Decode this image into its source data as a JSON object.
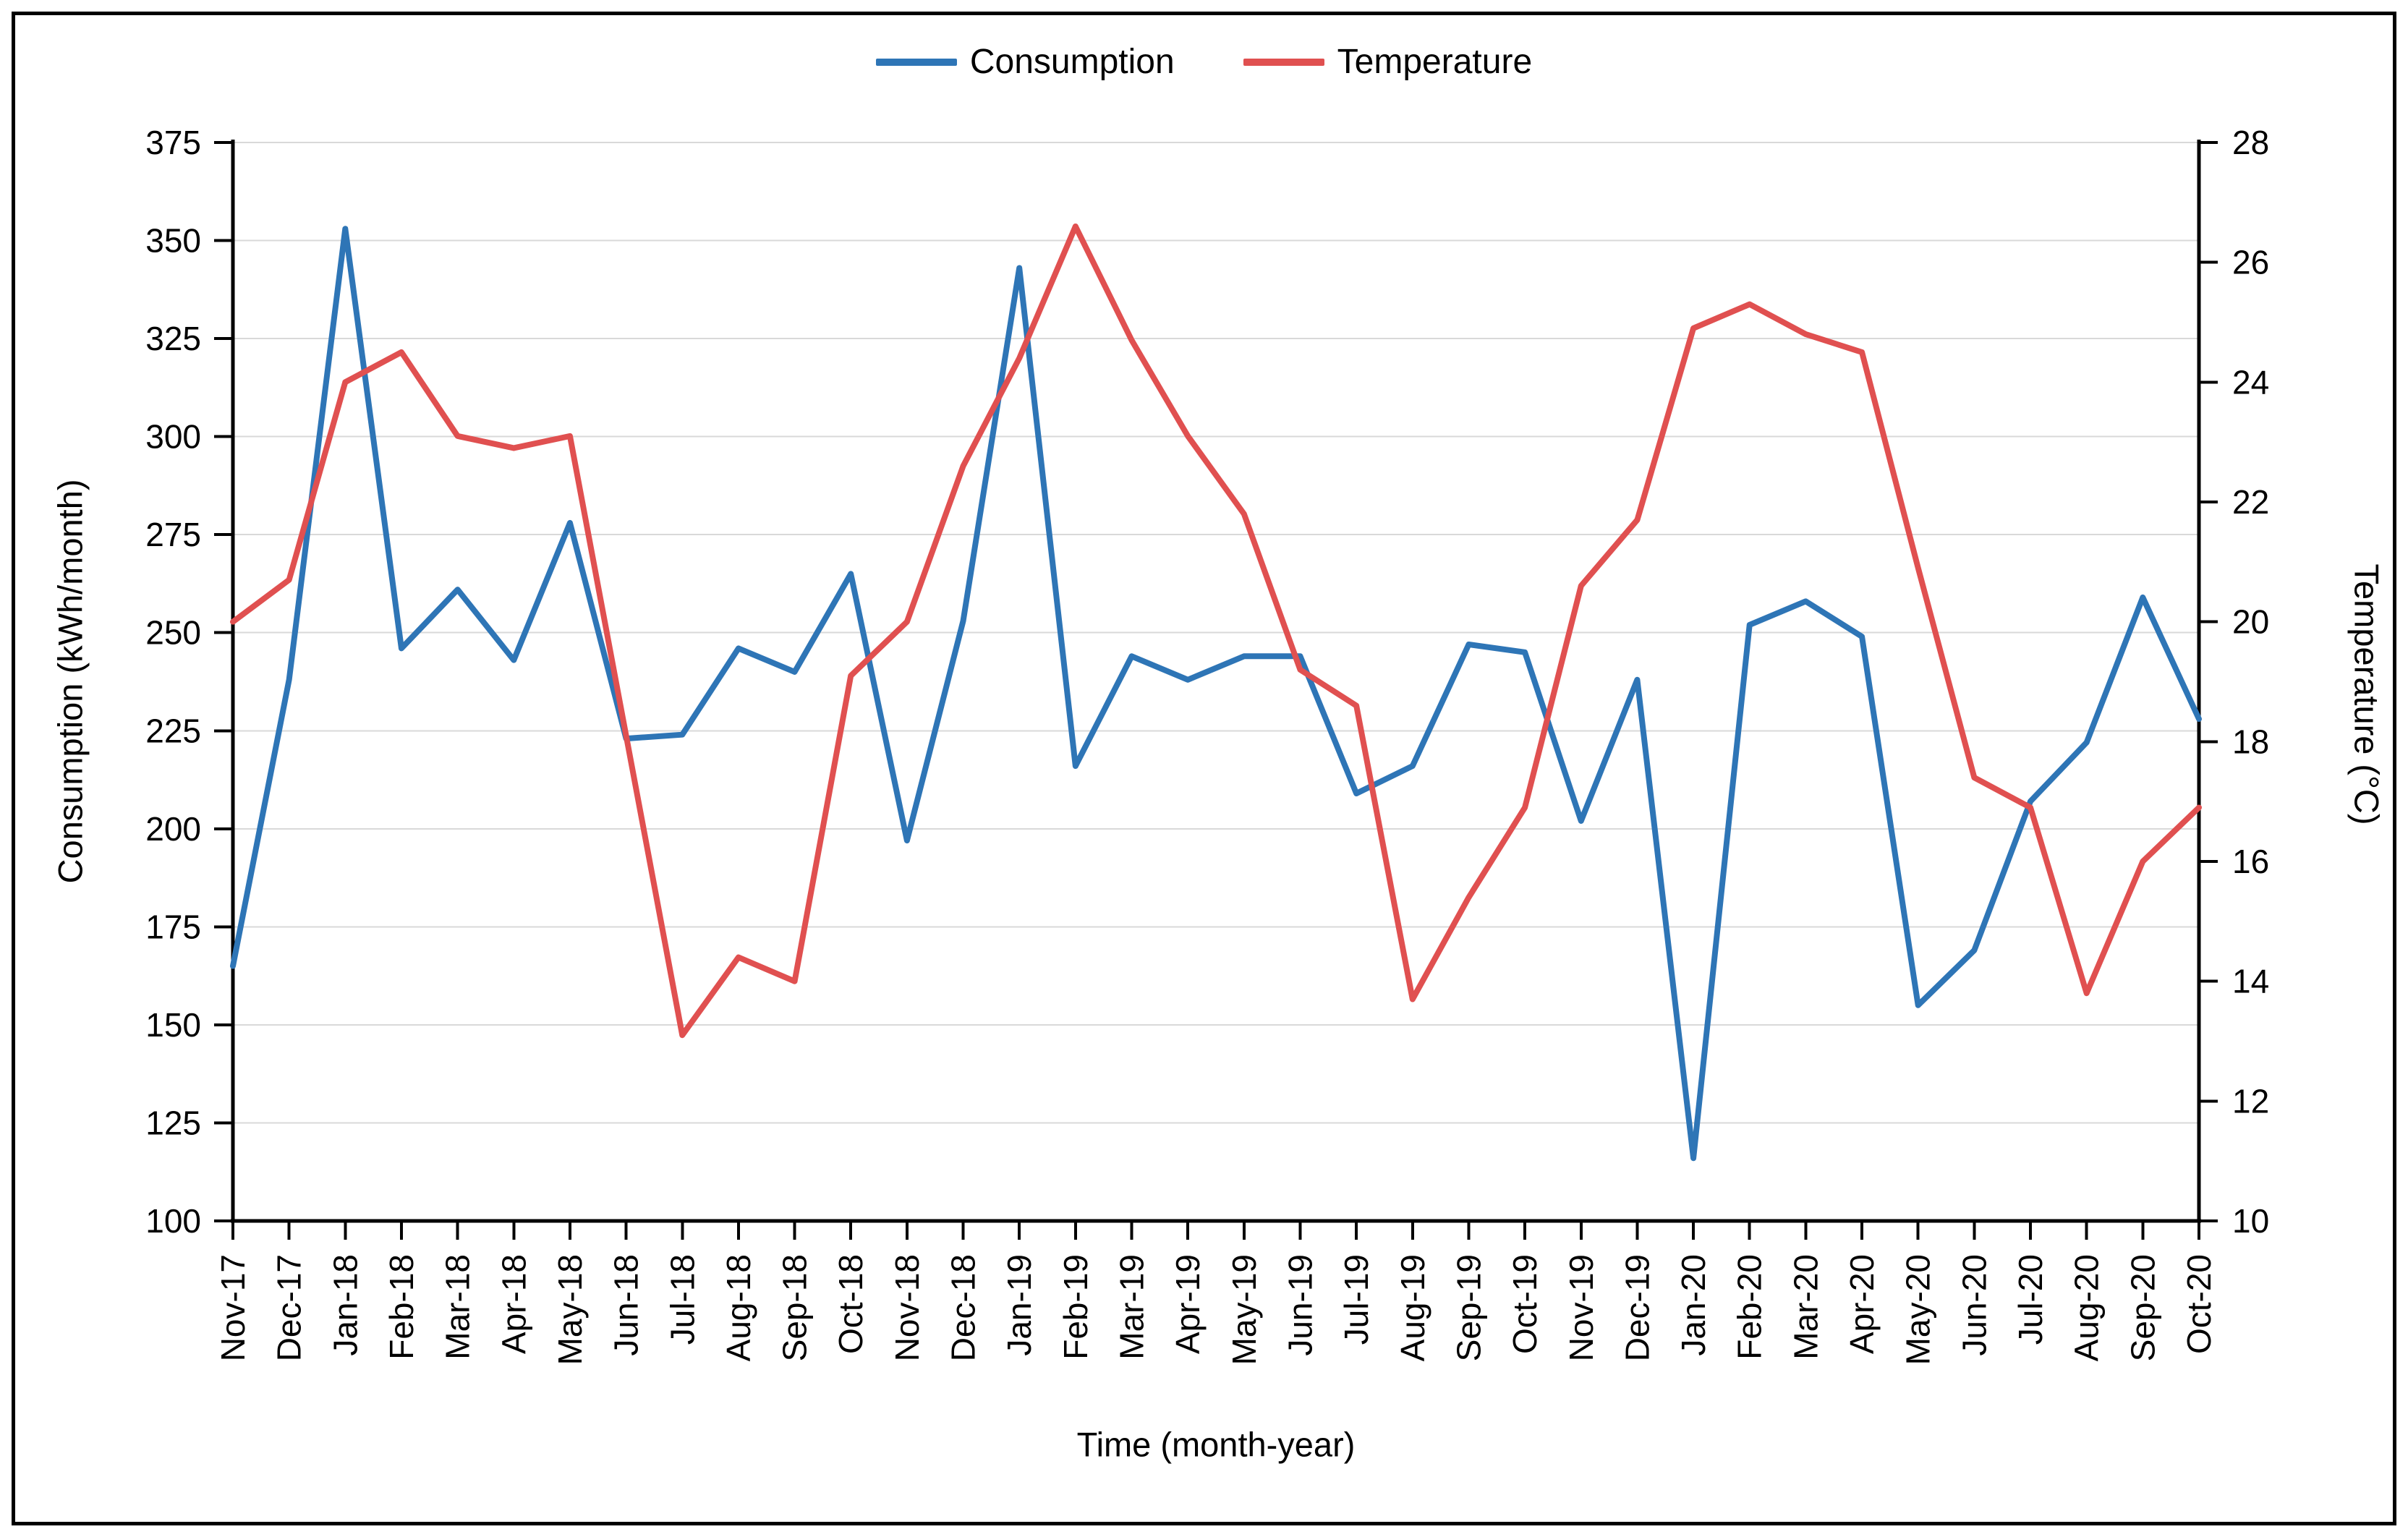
{
  "chart_data": {
    "type": "line",
    "title": "",
    "xlabel": "Time (month-year)",
    "ylabel_left": "Consumption (kWh/month)",
    "ylabel_right": "Temperature (°C)",
    "grid": "horizontal",
    "legend_position": "top",
    "categories": [
      "Nov-17",
      "Dec-17",
      "Jan-18",
      "Feb-18",
      "Mar-18",
      "Apr-18",
      "May-18",
      "Jun-18",
      "Jul-18",
      "Aug-18",
      "Sep-18",
      "Oct-18",
      "Nov-18",
      "Dec-18",
      "Jan-19",
      "Feb-19",
      "Mar-19",
      "Apr-19",
      "May-19",
      "Jun-19",
      "Jul-19",
      "Aug-19",
      "Sep-19",
      "Oct-19",
      "Nov-19",
      "Dec-19",
      "Jan-20",
      "Feb-20",
      "Mar-20",
      "Apr-20",
      "May-20",
      "Jun-20",
      "Jul-20",
      "Aug-20",
      "Sep-20",
      "Oct-20"
    ],
    "left_axis": {
      "min": 100,
      "max": 375,
      "step": 25,
      "ticks": [
        100,
        125,
        150,
        175,
        200,
        225,
        250,
        275,
        300,
        325,
        350,
        375
      ]
    },
    "right_axis": {
      "min": 10,
      "max": 28,
      "step": 2,
      "ticks": [
        10,
        12,
        14,
        16,
        18,
        20,
        22,
        24,
        26,
        28
      ]
    },
    "series": [
      {
        "name": "Consumption",
        "axis": "left",
        "unit": "kWh/month",
        "color": "#2E75B6",
        "values": [
          165,
          238,
          353,
          246,
          261,
          243,
          278,
          223,
          224,
          246,
          240,
          265,
          197,
          253,
          343,
          216,
          244,
          238,
          244,
          244,
          209,
          216,
          247,
          245,
          202,
          238,
          116,
          252,
          258,
          249,
          155,
          169,
          207,
          222,
          259,
          228
        ]
      },
      {
        "name": "Temperature",
        "axis": "right",
        "unit": "°C",
        "color": "#E05050",
        "values": [
          20.0,
          20.7,
          24.0,
          24.5,
          23.1,
          22.9,
          23.1,
          18.1,
          13.1,
          14.4,
          14.0,
          19.1,
          20.0,
          22.6,
          24.4,
          26.6,
          24.7,
          23.1,
          21.8,
          19.2,
          18.6,
          13.7,
          15.4,
          16.9,
          20.6,
          21.7,
          24.9,
          25.3,
          24.8,
          24.5,
          20.9,
          17.4,
          16.9,
          13.8,
          16.0,
          16.9
        ]
      }
    ]
  },
  "colors": {
    "background": "#FFFFFF",
    "gridline": "#D9D9D9",
    "axis": "#000000",
    "text": "#000000",
    "consumption": "#2E75B6",
    "temperature": "#E05050"
  }
}
